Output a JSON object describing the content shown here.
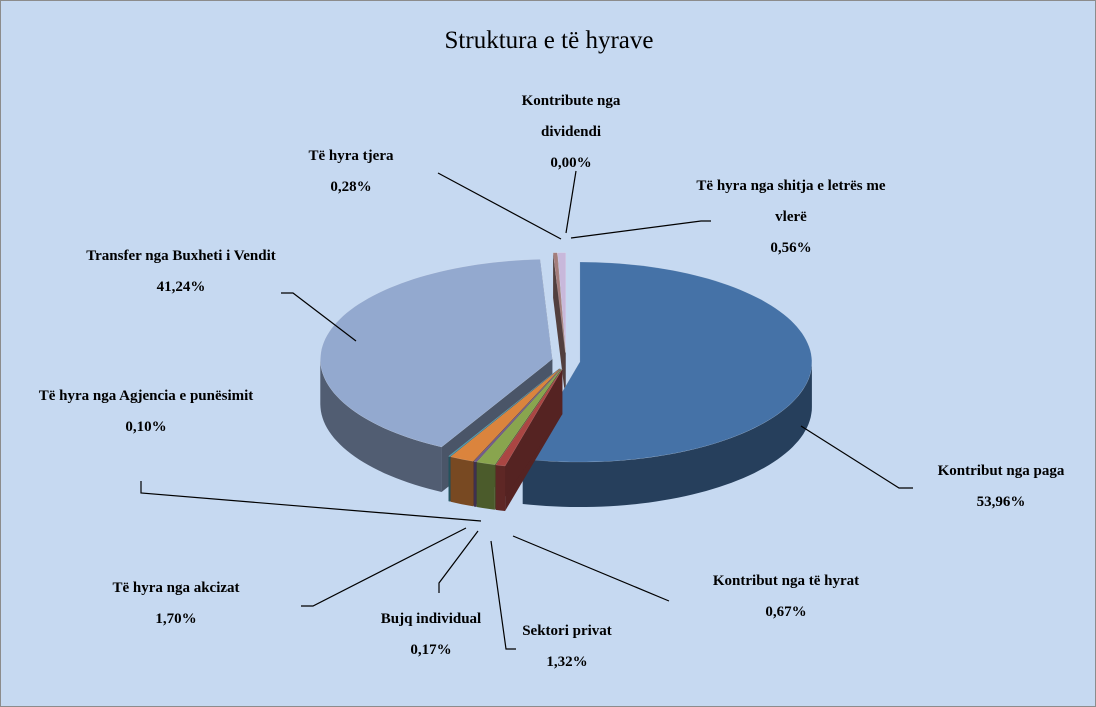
{
  "chart_data": {
    "type": "pie3d",
    "title": "Struktura e të hyrave",
    "categories": [
      "Kontribut nga paga",
      "Kontribut nga të hyrat",
      "Sektori privat",
      "Bujq individual",
      "Të hyra nga akcizat",
      "Të hyra nga Agjencia e punësimit",
      "Transfer nga Buxheti i Vendit",
      "Të hyra tjera",
      "Kontribute nga dividendi",
      "Të hyra nga shitja e letrës me vlerë"
    ],
    "values": [
      53.96,
      0.67,
      1.32,
      0.17,
      1.7,
      0.1,
      41.24,
      0.28,
      0.0,
      0.56
    ],
    "value_labels": [
      "53,96%",
      "0,67%",
      "1,32%",
      "0,17%",
      "1,70%",
      "0,10%",
      "41,24%",
      "0,28%",
      "0,00%",
      "0,56%"
    ],
    "colors": [
      "#4572a7",
      "#aa4643",
      "#89a54e",
      "#71588f",
      "#db843d",
      "#4198af",
      "#93a9cf",
      "#a47d7c",
      "#b5ca92",
      "#c8b8db"
    ]
  }
}
